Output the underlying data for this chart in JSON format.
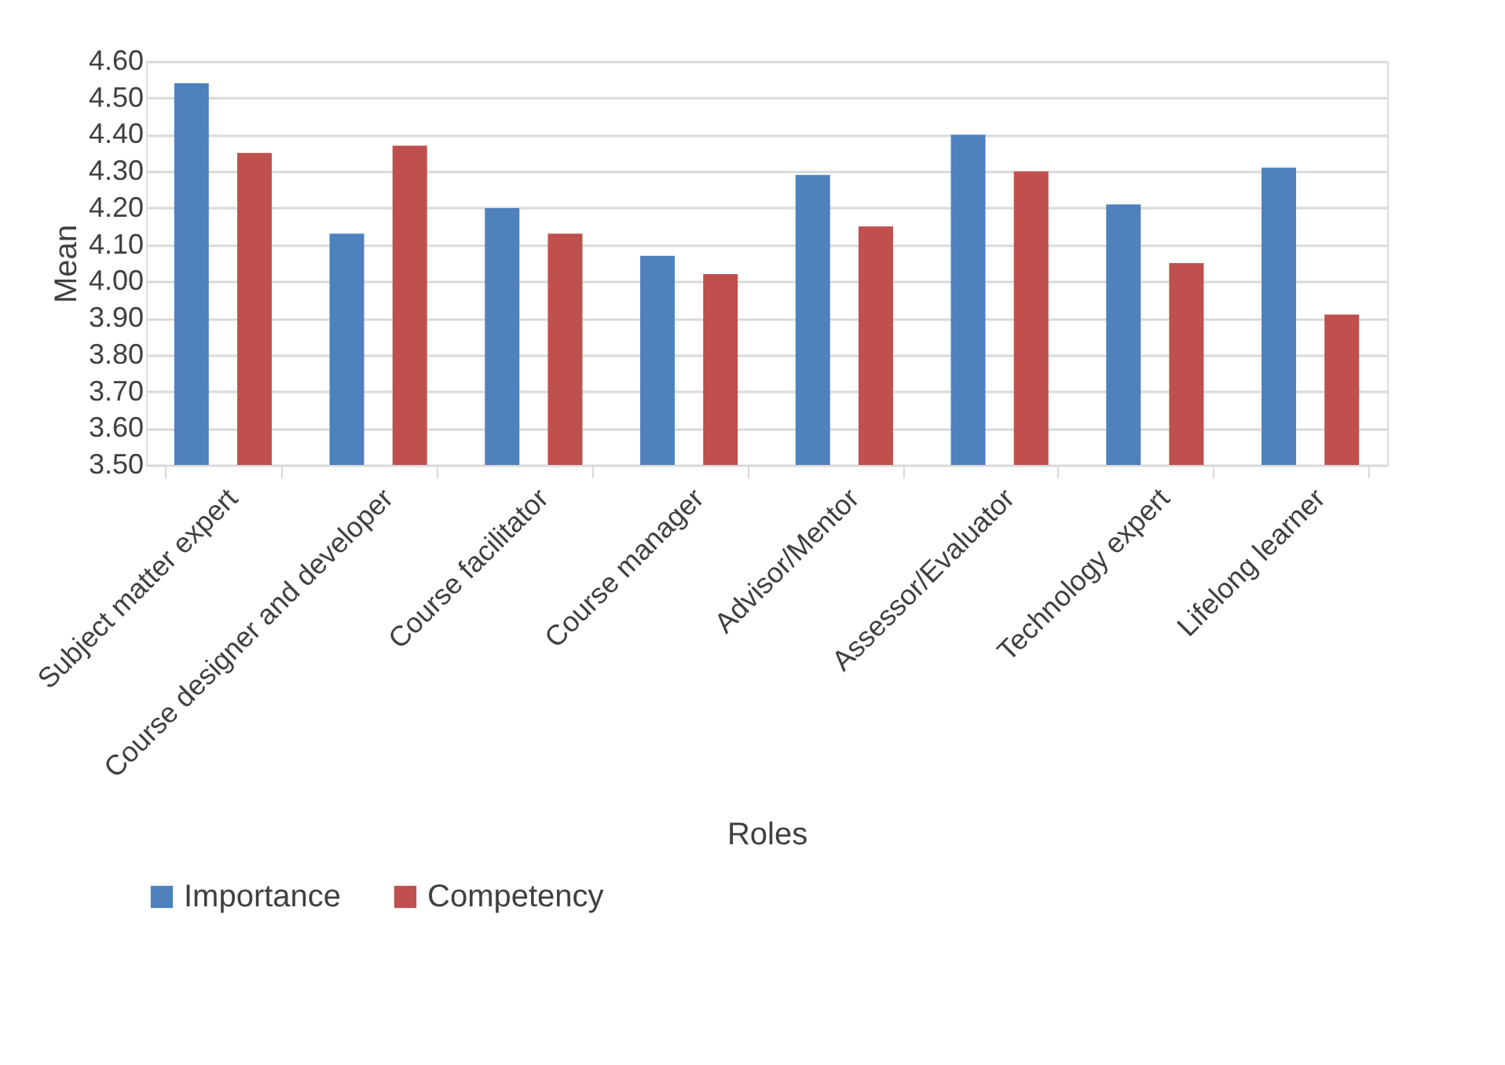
{
  "chart_data": {
    "type": "bar",
    "xlabel": "Roles",
    "ylabel": "Mean",
    "categories": [
      "Subject matter expert",
      "Course designer and developer",
      "Course facilitator",
      "Course manager",
      "Advisor/Mentor",
      "Assessor/Evaluator",
      "Technology expert",
      "Lifelong learner"
    ],
    "series": [
      {
        "name": "Importance",
        "color": "#4f81bd",
        "values": [
          4.54,
          4.13,
          4.2,
          4.07,
          4.29,
          4.4,
          4.21,
          4.31
        ]
      },
      {
        "name": "Competency",
        "color": "#c0504d",
        "values": [
          4.35,
          4.37,
          4.13,
          4.02,
          4.15,
          4.3,
          4.05,
          3.91
        ]
      }
    ],
    "ylim": [
      3.5,
      4.6
    ],
    "yticks": [
      {
        "value": 3.5,
        "label": "3.50"
      },
      {
        "value": 3.6,
        "label": "3.60"
      },
      {
        "value": 3.7,
        "label": "3.70"
      },
      {
        "value": 3.8,
        "label": "3.80"
      },
      {
        "value": 3.9,
        "label": "3.90"
      },
      {
        "value": 4.0,
        "label": "4.00"
      },
      {
        "value": 4.1,
        "label": "4.10"
      },
      {
        "value": 4.2,
        "label": "4.20"
      },
      {
        "value": 4.3,
        "label": "4.30"
      },
      {
        "value": 4.4,
        "label": "4.40"
      },
      {
        "value": 4.5,
        "label": "4.50"
      },
      {
        "value": 4.6,
        "label": "4.60"
      }
    ],
    "grid": "y",
    "legend": "bottom"
  }
}
